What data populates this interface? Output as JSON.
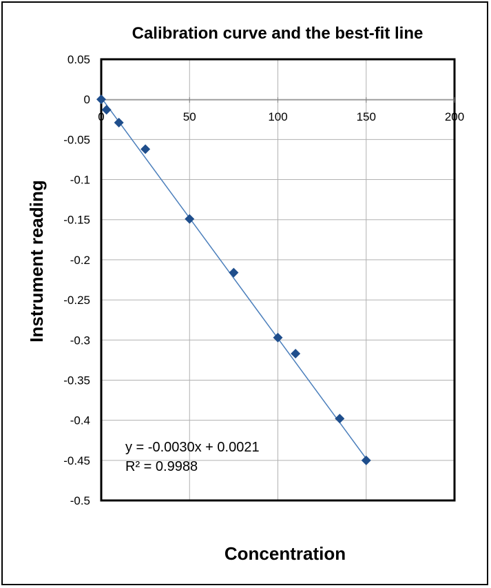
{
  "chart_data": {
    "type": "scatter",
    "title": "Calibration curve and the best-fit line",
    "xlabel": "Concentration",
    "ylabel": "Instrument reading",
    "xlim": [
      0,
      200
    ],
    "ylim": [
      -0.5,
      0.05
    ],
    "x_ticks": [
      0,
      50,
      100,
      150,
      200
    ],
    "x_tick_labels": [
      "0",
      "50",
      "100",
      "150",
      "200"
    ],
    "y_ticks": [
      0.05,
      0,
      -0.05,
      -0.1,
      -0.15,
      -0.2,
      -0.25,
      -0.3,
      -0.35,
      -0.4,
      -0.45,
      -0.5
    ],
    "y_tick_labels": [
      "0.05",
      "0",
      "-0.05",
      "-0.1",
      "-0.15",
      "-0.2",
      "-0.25",
      "-0.3",
      "-0.35",
      "-0.4",
      "-0.45",
      "-0.5"
    ],
    "grid": true,
    "series": [
      {
        "marker": "diamond",
        "color": "#1f4e8c",
        "points": [
          {
            "x": 0,
            "y": 0.0
          },
          {
            "x": 3,
            "y": -0.013
          },
          {
            "x": 10,
            "y": -0.029
          },
          {
            "x": 25,
            "y": -0.062
          },
          {
            "x": 50,
            "y": -0.149
          },
          {
            "x": 75,
            "y": -0.216
          },
          {
            "x": 100,
            "y": -0.297
          },
          {
            "x": 110,
            "y": -0.317
          },
          {
            "x": 135,
            "y": -0.398
          },
          {
            "x": 150,
            "y": -0.45
          }
        ]
      }
    ],
    "trendline": {
      "color": "#4a7ebb",
      "slope": -0.003,
      "intercept": 0.0021,
      "x_range": [
        0,
        150
      ]
    },
    "annotations": {
      "equation": "y = -0.0030x + 0.0021",
      "r_squared": "R² = 0.9988"
    }
  }
}
